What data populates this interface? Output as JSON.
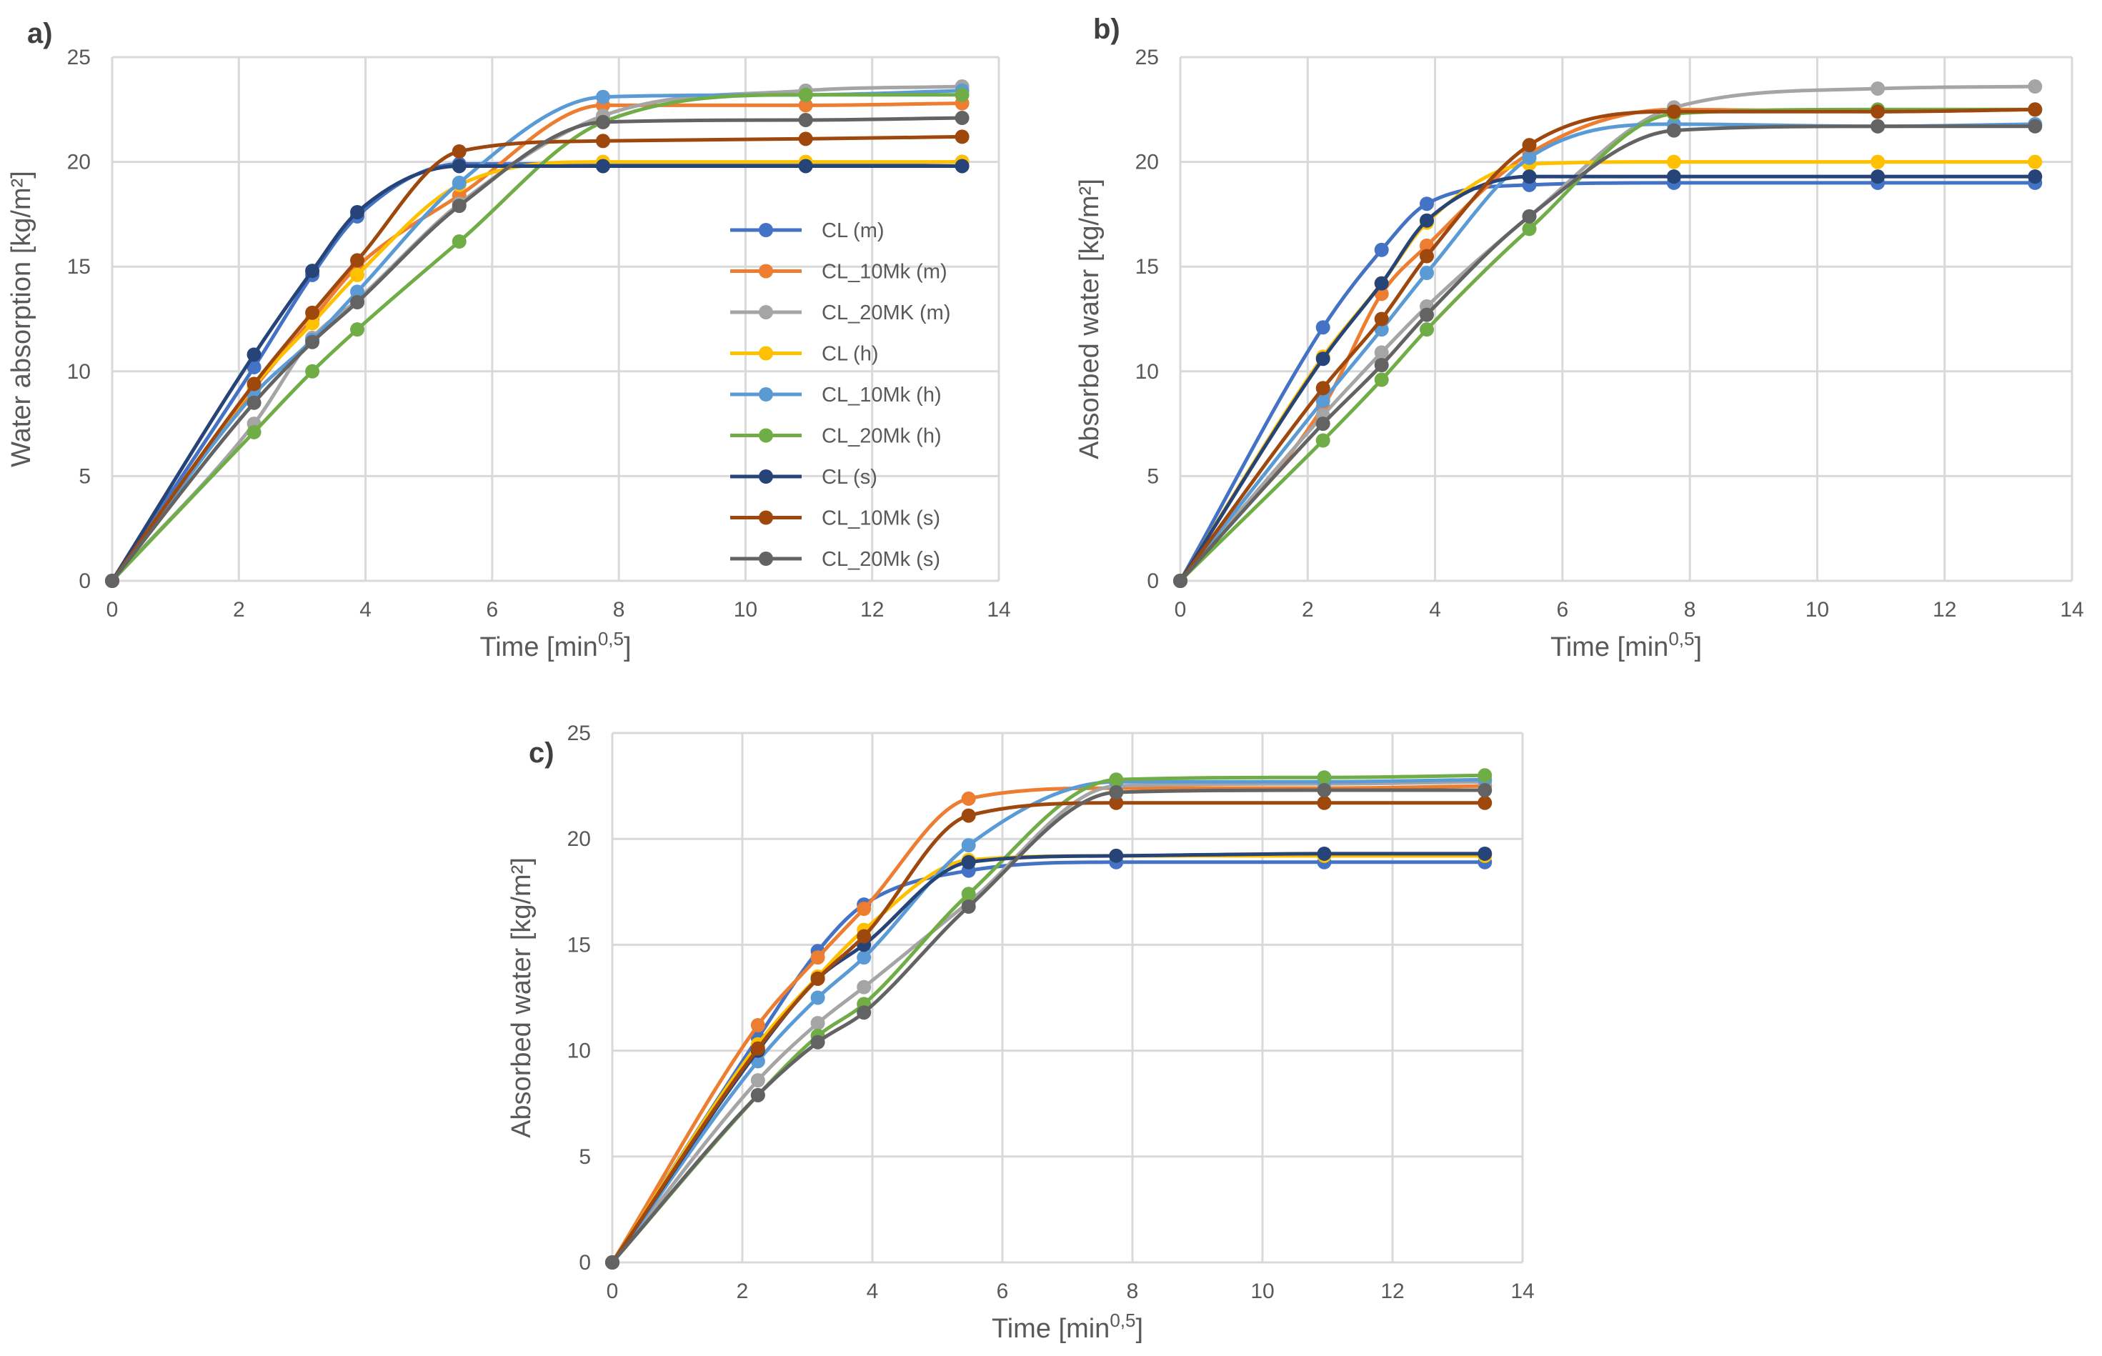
{
  "colors": {
    "CL (m)": "#4472c4",
    "CL_10Mk (m)": "#ed7d31",
    "CL_20MK (m)": "#a5a5a5",
    "CL (h)": "#ffc000",
    "CL_10Mk (h)": "#5b9bd5",
    "CL_20Mk (h)": "#70ad47",
    "CL (s)": "#264478",
    "CL_10Mk (s)": "#9e480e",
    "CL_20Mk (s)": "#636363"
  },
  "legend": [
    "CL (m)",
    "CL_10Mk (m)",
    "CL_20MK (m)",
    "CL (h)",
    "CL_10Mk (h)",
    "CL_20Mk (h)",
    "CL (s)",
    "CL_10Mk (s)",
    "CL_20Mk (s)"
  ],
  "chart_data": [
    {
      "type": "line",
      "panel_label": "a)",
      "xlabel": "Time [min",
      "xlabel_sup": "0,5",
      "xlabel_end": "]",
      "ylabel": "Water absorption [kg/m²]",
      "xlim": [
        0,
        14
      ],
      "ylim": [
        0,
        25
      ],
      "xticks": [
        "0",
        "2",
        "4",
        "6",
        "8",
        "10",
        "12",
        "14"
      ],
      "yticks": [
        "0",
        "5",
        "10",
        "15",
        "20",
        "25"
      ],
      "legend_position": "right-inside",
      "x": [
        0,
        2.24,
        3.16,
        3.87,
        5.48,
        7.75,
        10.95,
        13.42
      ],
      "series": [
        {
          "name": "CL (m)",
          "values": [
            0,
            10.2,
            14.6,
            17.4,
            19.9,
            19.9,
            19.9,
            20.0
          ]
        },
        {
          "name": "CL_10Mk (m)",
          "values": [
            0,
            9.2,
            12.5,
            15.0,
            18.4,
            22.7,
            22.7,
            22.8
          ]
        },
        {
          "name": "CL_20MK (m)",
          "values": [
            0,
            7.5,
            11.6,
            13.4,
            18.0,
            22.2,
            23.4,
            23.6
          ]
        },
        {
          "name": "CL (h)",
          "values": [
            0,
            9.3,
            12.3,
            14.6,
            18.9,
            20.0,
            20.0,
            20.0
          ]
        },
        {
          "name": "CL_10Mk (h)",
          "values": [
            0,
            8.9,
            11.5,
            13.8,
            19.0,
            23.1,
            23.2,
            23.4
          ]
        },
        {
          "name": "CL_20Mk (h)",
          "values": [
            0,
            7.1,
            10.0,
            12.0,
            16.2,
            21.9,
            23.2,
            23.2
          ]
        },
        {
          "name": "CL (s)",
          "values": [
            0,
            10.8,
            14.8,
            17.6,
            19.8,
            19.8,
            19.8,
            19.8
          ]
        },
        {
          "name": "CL_10Mk (s)",
          "values": [
            0,
            9.4,
            12.8,
            15.3,
            20.5,
            21.0,
            21.1,
            21.2
          ]
        },
        {
          "name": "CL_20Mk (s)",
          "values": [
            0,
            8.5,
            11.4,
            13.3,
            17.9,
            21.9,
            22.0,
            22.1
          ]
        }
      ]
    },
    {
      "type": "line",
      "panel_label": "b)",
      "xlabel": "Time [min",
      "xlabel_sup": "0,5",
      "xlabel_end": "]",
      "ylabel": "Absorbed water [kg/m²]",
      "xlim": [
        0,
        14
      ],
      "ylim": [
        0,
        25
      ],
      "xticks": [
        "0",
        "2",
        "4",
        "6",
        "8",
        "10",
        "12",
        "14"
      ],
      "yticks": [
        "0",
        "5",
        "10",
        "15",
        "20",
        "25"
      ],
      "x": [
        0,
        2.24,
        3.16,
        3.87,
        5.48,
        7.75,
        10.95,
        13.42
      ],
      "series": [
        {
          "name": "CL (m)",
          "values": [
            0,
            12.1,
            15.8,
            18.0,
            18.9,
            19.0,
            19.0,
            19.0
          ]
        },
        {
          "name": "CL_10Mk (m)",
          "values": [
            0,
            8.3,
            13.7,
            16.0,
            20.4,
            22.5,
            22.4,
            22.5
          ]
        },
        {
          "name": "CL_20MK (m)",
          "values": [
            0,
            7.9,
            10.9,
            13.1,
            17.4,
            22.6,
            23.5,
            23.6
          ]
        },
        {
          "name": "CL (h)",
          "values": [
            0,
            10.7,
            14.2,
            17.1,
            19.9,
            20.0,
            20.0,
            20.0
          ]
        },
        {
          "name": "CL_10Mk (h)",
          "values": [
            0,
            8.6,
            12.0,
            14.7,
            20.2,
            21.8,
            21.7,
            21.8
          ]
        },
        {
          "name": "CL_20Mk (h)",
          "values": [
            0,
            6.7,
            9.6,
            12.0,
            16.8,
            22.3,
            22.5,
            22.5
          ]
        },
        {
          "name": "CL (s)",
          "values": [
            0,
            10.6,
            14.2,
            17.2,
            19.3,
            19.3,
            19.3,
            19.3
          ]
        },
        {
          "name": "CL_10Mk (s)",
          "values": [
            0,
            9.2,
            12.5,
            15.5,
            20.8,
            22.4,
            22.4,
            22.5
          ]
        },
        {
          "name": "CL_20Mk (s)",
          "values": [
            0,
            7.5,
            10.3,
            12.7,
            17.4,
            21.5,
            21.7,
            21.7
          ]
        }
      ]
    },
    {
      "type": "line",
      "panel_label": "c)",
      "xlabel": "Time [min",
      "xlabel_sup": "0,5",
      "xlabel_end": "]",
      "ylabel": "Absorbed water [kg/m²]",
      "xlim": [
        0,
        14
      ],
      "ylim": [
        0,
        25
      ],
      "xticks": [
        "0",
        "2",
        "4",
        "6",
        "8",
        "10",
        "12",
        "14"
      ],
      "yticks": [
        "0",
        "5",
        "10",
        "15",
        "20",
        "25"
      ],
      "x": [
        0,
        2.24,
        3.16,
        3.87,
        5.48,
        7.75,
        10.95,
        13.42
      ],
      "series": [
        {
          "name": "CL (m)",
          "values": [
            0,
            10.6,
            14.7,
            16.9,
            18.5,
            18.9,
            18.9,
            18.9
          ]
        },
        {
          "name": "CL_10Mk (m)",
          "values": [
            0,
            11.2,
            14.4,
            16.7,
            21.9,
            22.4,
            22.4,
            22.5
          ]
        },
        {
          "name": "CL_20MK (m)",
          "values": [
            0,
            8.6,
            11.3,
            13.0,
            17.0,
            22.5,
            22.6,
            22.7
          ]
        },
        {
          "name": "CL (h)",
          "values": [
            0,
            10.3,
            13.5,
            15.7,
            19.0,
            19.2,
            19.2,
            19.2
          ]
        },
        {
          "name": "CL_10Mk (h)",
          "values": [
            0,
            9.5,
            12.5,
            14.4,
            19.7,
            22.7,
            22.7,
            22.8
          ]
        },
        {
          "name": "CL_20Mk (h)",
          "values": [
            0,
            7.9,
            10.7,
            12.2,
            17.4,
            22.8,
            22.9,
            23.0
          ]
        },
        {
          "name": "CL (s)",
          "values": [
            0,
            10.0,
            13.4,
            15.0,
            18.9,
            19.2,
            19.3,
            19.3
          ]
        },
        {
          "name": "CL_10Mk (s)",
          "values": [
            0,
            10.1,
            13.4,
            15.4,
            21.1,
            21.7,
            21.7,
            21.7
          ]
        },
        {
          "name": "CL_20Mk (s)",
          "values": [
            0,
            7.9,
            10.4,
            11.8,
            16.8,
            22.2,
            22.3,
            22.3
          ]
        }
      ]
    }
  ]
}
